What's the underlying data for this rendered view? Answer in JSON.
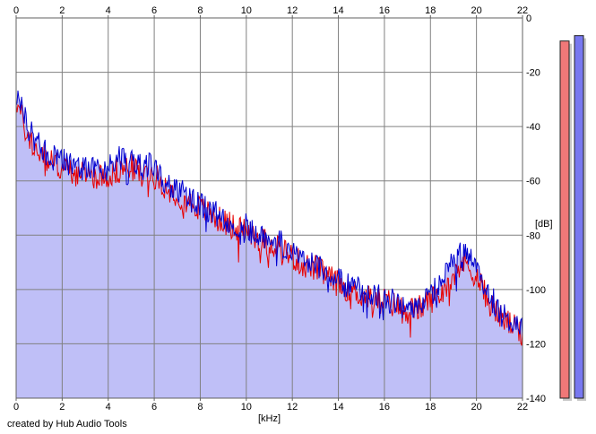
{
  "credit": "created by Hub Audio Tools",
  "colors": {
    "background": "#ffffff",
    "plot_fill": "#bfbff7",
    "grid": "#808080",
    "left_channel": "#e80000",
    "right_channel": "#0000d0",
    "left_meter": "#f07878",
    "right_meter": "#7878f0"
  },
  "meters": [
    {
      "name": "left-level-meter",
      "level_db": -8.5,
      "color_key": "left_meter"
    },
    {
      "name": "right-level-meter",
      "level_db": -6.5,
      "color_key": "right_meter"
    }
  ],
  "chart_data": {
    "type": "line",
    "title": "",
    "xlabel": "[kHz]",
    "ylabel": "[dB]",
    "xlim": [
      0,
      22
    ],
    "ylim": [
      -140,
      0
    ],
    "x_ticks": [
      "0",
      "2",
      "4",
      "6",
      "8",
      "10",
      "12",
      "14",
      "16",
      "18",
      "20",
      "22"
    ],
    "y_ticks": [
      "0",
      "-20",
      "-40",
      "-60",
      "-80",
      "-100",
      "-120",
      "-140"
    ],
    "grid": true,
    "legend": "none",
    "x": [
      0,
      0.5,
      1,
      1.5,
      2,
      2.5,
      3,
      3.5,
      4,
      4.5,
      5,
      5.5,
      6,
      6.5,
      7,
      7.5,
      8,
      8.5,
      9,
      9.5,
      10,
      10.5,
      11,
      11.5,
      12,
      12.5,
      13,
      13.5,
      14,
      14.5,
      15,
      15.5,
      16,
      16.5,
      17,
      17.5,
      18,
      18.5,
      19,
      19.5,
      20,
      20.5,
      21,
      21.5,
      22
    ],
    "series": [
      {
        "color_key": "left_channel",
        "values": [
          -30,
          -44,
          -50,
          -53,
          -55,
          -57,
          -58,
          -58,
          -58,
          -56,
          -55,
          -57,
          -58,
          -62,
          -65,
          -68,
          -70,
          -73,
          -75,
          -77,
          -78,
          -81,
          -83,
          -84,
          -88,
          -91,
          -92,
          -95,
          -98,
          -100,
          -102,
          -104,
          -104,
          -106,
          -108,
          -107,
          -104,
          -101,
          -93,
          -90,
          -95,
          -104,
          -110,
          -113,
          -117
        ]
      },
      {
        "color_key": "right_channel",
        "values": [
          -28,
          -40,
          -47,
          -51,
          -52,
          -55,
          -56,
          -55,
          -55,
          -51,
          -52,
          -55,
          -54,
          -60,
          -63,
          -66,
          -69,
          -72,
          -73,
          -76,
          -77,
          -80,
          -81,
          -83,
          -86,
          -89,
          -90,
          -94,
          -97,
          -99,
          -100,
          -102,
          -103,
          -105,
          -107,
          -106,
          -102,
          -96,
          -90,
          -86,
          -93,
          -101,
          -108,
          -112,
          -115
        ]
      }
    ]
  }
}
